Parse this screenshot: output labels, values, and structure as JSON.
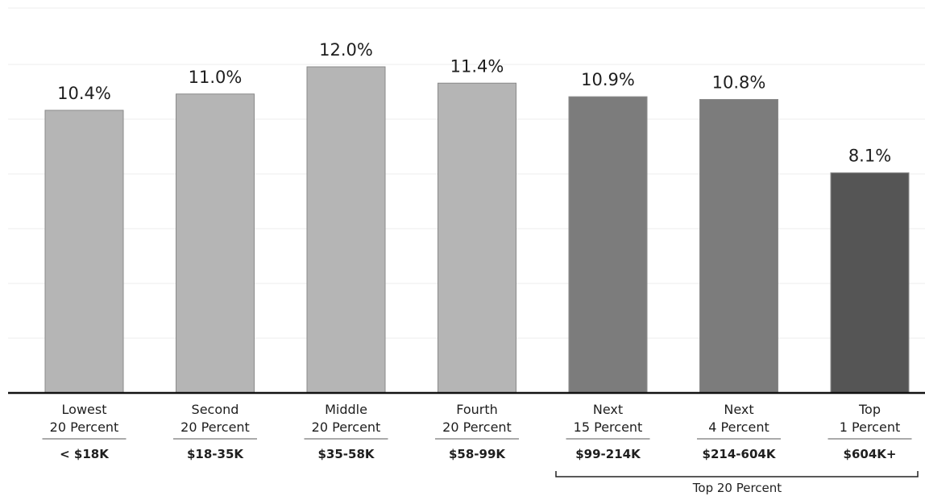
{
  "chart_data": {
    "type": "bar",
    "categories": [
      {
        "line1": "Lowest",
        "line2": "20 Percent",
        "income": "< $18K"
      },
      {
        "line1": "Second",
        "line2": "20 Percent",
        "income": "$18-35K"
      },
      {
        "line1": "Middle",
        "line2": "20 Percent",
        "income": "$35-58K"
      },
      {
        "line1": "Fourth",
        "line2": "20 Percent",
        "income": "$58-99K"
      },
      {
        "line1": "Next",
        "line2": "15 Percent",
        "income": "$99-214K"
      },
      {
        "line1": "Next",
        "line2": "4 Percent",
        "income": "$214-604K"
      },
      {
        "line1": "Top",
        "line2": "1 Percent",
        "income": "$604K+"
      }
    ],
    "values": [
      10.4,
      11.0,
      12.0,
      11.4,
      10.9,
      10.8,
      8.1
    ],
    "value_labels": [
      "10.4%",
      "11.0%",
      "12.0%",
      "11.4%",
      "10.9%",
      "10.8%",
      "8.1%"
    ],
    "colors": [
      "#b5b5b5",
      "#b5b5b5",
      "#b5b5b5",
      "#b5b5b5",
      "#7c7c7c",
      "#7c7c7c",
      "#555555"
    ],
    "ylim": [
      0,
      13
    ],
    "grid": true,
    "bracket_label": "Top 20 Percent"
  }
}
